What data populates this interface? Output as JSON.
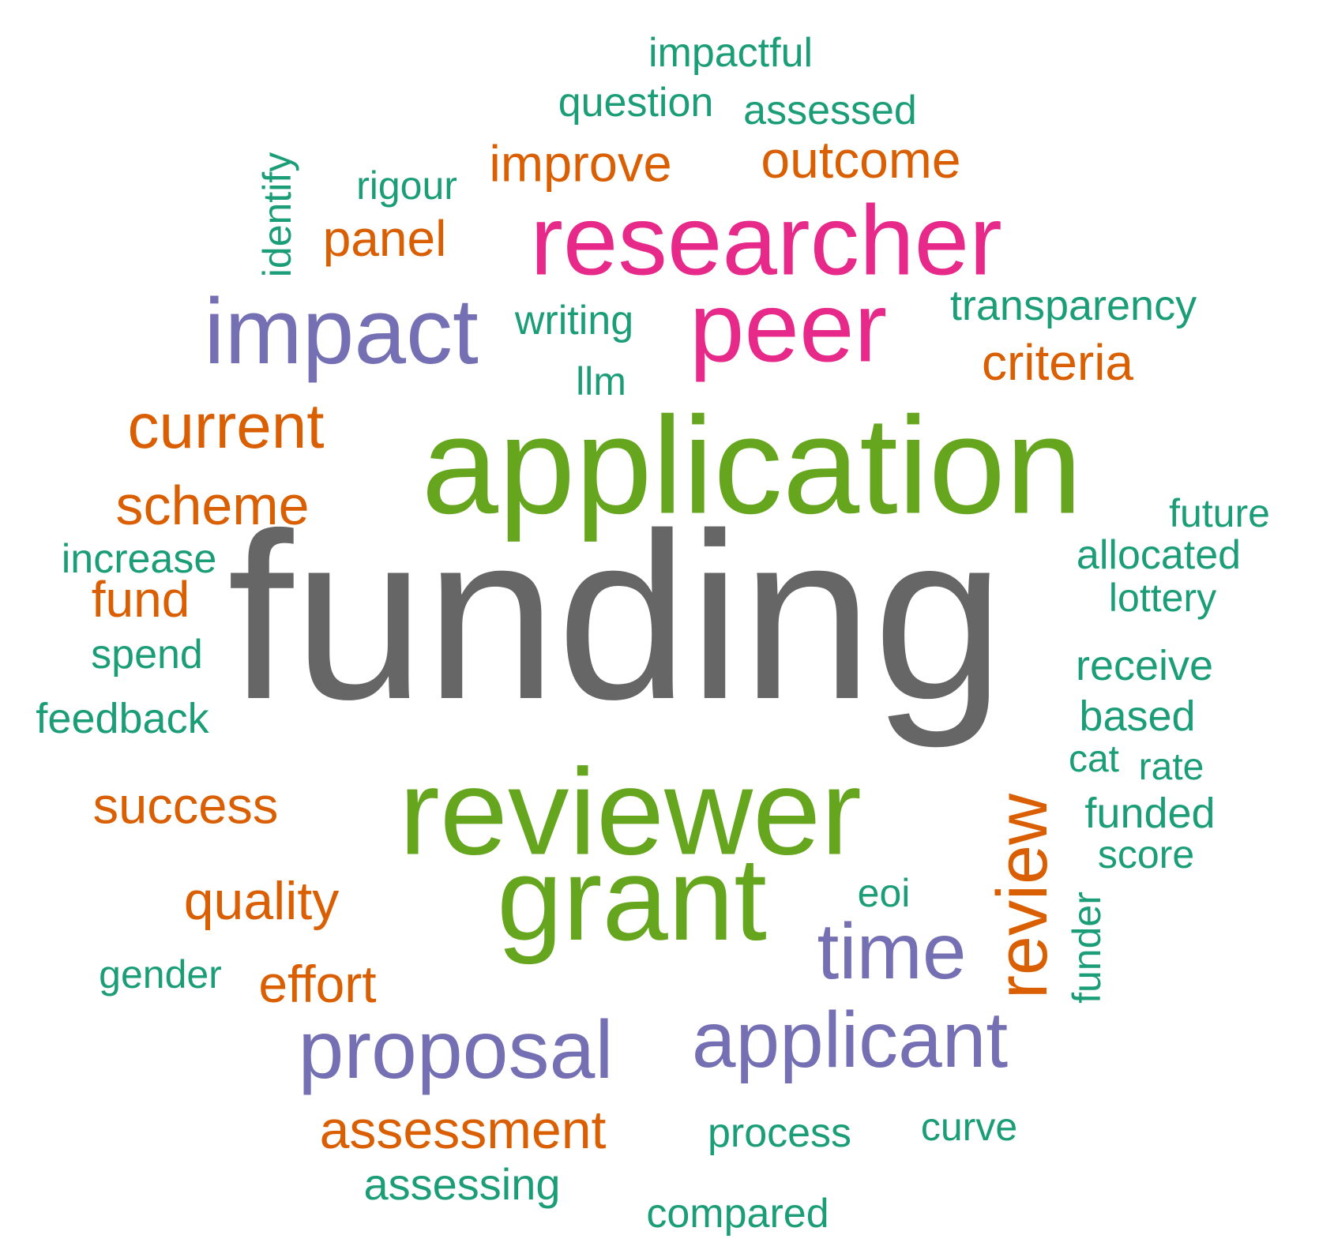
{
  "palette": {
    "gray": "#666666",
    "green": "#66a61e",
    "magenta": "#e7298a",
    "purple": "#7570b3",
    "orange": "#d95f02",
    "teal": "#1b9e77"
  },
  "words": [
    {
      "text": "funding",
      "color": "gray",
      "weight": 1.0
    },
    {
      "text": "application",
      "color": "green",
      "weight": 0.58
    },
    {
      "text": "reviewer",
      "color": "green",
      "weight": 0.52
    },
    {
      "text": "grant",
      "color": "green",
      "weight": 0.5
    },
    {
      "text": "researcher",
      "color": "magenta",
      "weight": 0.42
    },
    {
      "text": "peer",
      "color": "magenta",
      "weight": 0.42
    },
    {
      "text": "impact",
      "color": "purple",
      "weight": 0.38
    },
    {
      "text": "proposal",
      "color": "purple",
      "weight": 0.34
    },
    {
      "text": "applicant",
      "color": "purple",
      "weight": 0.33
    },
    {
      "text": "time",
      "color": "purple",
      "weight": 0.32
    },
    {
      "text": "review",
      "color": "orange",
      "weight": 0.28
    },
    {
      "text": "current",
      "color": "orange",
      "weight": 0.24
    },
    {
      "text": "scheme",
      "color": "orange",
      "weight": 0.22
    },
    {
      "text": "success",
      "color": "orange",
      "weight": 0.2
    },
    {
      "text": "assessment",
      "color": "orange",
      "weight": 0.2
    },
    {
      "text": "quality",
      "color": "orange",
      "weight": 0.2
    },
    {
      "text": "outcome",
      "color": "orange",
      "weight": 0.2
    },
    {
      "text": "improve",
      "color": "orange",
      "weight": 0.19
    },
    {
      "text": "panel",
      "color": "orange",
      "weight": 0.19
    },
    {
      "text": "criteria",
      "color": "orange",
      "weight": 0.19
    },
    {
      "text": "effort",
      "color": "orange",
      "weight": 0.19
    },
    {
      "text": "fund",
      "color": "orange",
      "weight": 0.19
    },
    {
      "text": "transparency",
      "color": "teal",
      "weight": 0.15
    },
    {
      "text": "feedback",
      "color": "teal",
      "weight": 0.15
    },
    {
      "text": "funded",
      "color": "teal",
      "weight": 0.15
    },
    {
      "text": "receive",
      "color": "teal",
      "weight": 0.15
    },
    {
      "text": "based",
      "color": "teal",
      "weight": 0.15
    },
    {
      "text": "assessing",
      "color": "teal",
      "weight": 0.15
    },
    {
      "text": "compared",
      "color": "teal",
      "weight": 0.14
    },
    {
      "text": "process",
      "color": "teal",
      "weight": 0.14
    },
    {
      "text": "question",
      "color": "teal",
      "weight": 0.14
    },
    {
      "text": "assessed",
      "color": "teal",
      "weight": 0.14
    },
    {
      "text": "impactful",
      "color": "teal",
      "weight": 0.14
    },
    {
      "text": "writing",
      "color": "teal",
      "weight": 0.14
    },
    {
      "text": "increase",
      "color": "teal",
      "weight": 0.14
    },
    {
      "text": "allocated",
      "color": "teal",
      "weight": 0.14
    },
    {
      "text": "spend",
      "color": "teal",
      "weight": 0.14
    },
    {
      "text": "future",
      "color": "teal",
      "weight": 0.13
    },
    {
      "text": "lottery",
      "color": "teal",
      "weight": 0.13
    },
    {
      "text": "score",
      "color": "teal",
      "weight": 0.13
    },
    {
      "text": "rigour",
      "color": "teal",
      "weight": 0.13
    },
    {
      "text": "gender",
      "color": "teal",
      "weight": 0.13
    },
    {
      "text": "curve",
      "color": "teal",
      "weight": 0.13
    },
    {
      "text": "identify",
      "color": "teal",
      "weight": 0.13
    },
    {
      "text": "funder",
      "color": "teal",
      "weight": 0.13
    },
    {
      "text": "llm",
      "color": "teal",
      "weight": 0.13
    },
    {
      "text": "eoi",
      "color": "teal",
      "weight": 0.13
    },
    {
      "text": "cat",
      "color": "teal",
      "weight": 0.13
    },
    {
      "text": "rate",
      "color": "teal",
      "weight": 0.13
    }
  ]
}
